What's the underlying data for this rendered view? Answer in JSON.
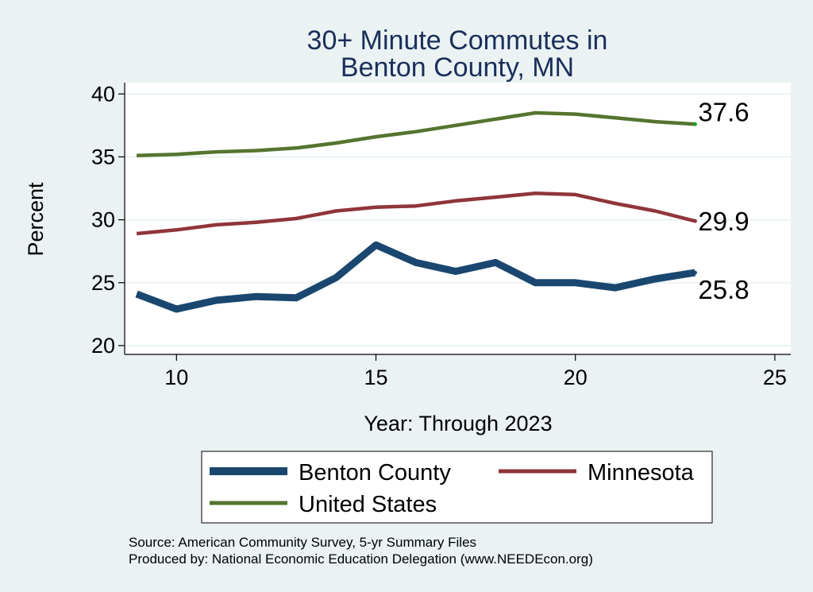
{
  "chart_data": {
    "type": "line",
    "title": [
      "30+ Minute Commutes in",
      "Benton County, MN"
    ],
    "xlabel": "Year: Through 2023",
    "ylabel": "Percent",
    "xlim": [
      8.7,
      25.4
    ],
    "ylim": [
      19.3,
      40.9
    ],
    "xticks": [
      10,
      15,
      20,
      25
    ],
    "yticks": [
      20,
      25,
      30,
      35,
      40
    ],
    "grid": true,
    "legend_position": "bottom",
    "x": [
      9,
      10,
      11,
      12,
      13,
      14,
      15,
      16,
      17,
      18,
      19,
      20,
      21,
      22,
      23
    ],
    "series": [
      {
        "name": "Benton County",
        "color": "#1a476f",
        "values": [
          24.1,
          22.9,
          23.6,
          23.9,
          23.8,
          25.4,
          28.0,
          26.6,
          25.9,
          26.6,
          25.0,
          25.0,
          24.6,
          25.3,
          25.8
        ],
        "end_label": "25.8"
      },
      {
        "name": "Minnesota",
        "color": "#90353b",
        "values": [
          28.9,
          29.2,
          29.6,
          29.8,
          30.1,
          30.7,
          31.0,
          31.1,
          31.5,
          31.8,
          32.1,
          32.0,
          31.3,
          30.7,
          29.9
        ],
        "end_label": "29.9"
      },
      {
        "name": "United States",
        "color": "#55752f",
        "values": [
          35.1,
          35.2,
          35.4,
          35.5,
          35.7,
          36.1,
          36.6,
          37.0,
          37.5,
          38.0,
          38.5,
          38.4,
          38.1,
          37.8,
          37.6
        ],
        "end_label": "37.6"
      }
    ]
  },
  "notes": {
    "source": "Source: American Community Survey, 5-yr Summary Files",
    "produced": "Produced by: National Economic Education Delegation (www.NEEDEcon.org)"
  }
}
